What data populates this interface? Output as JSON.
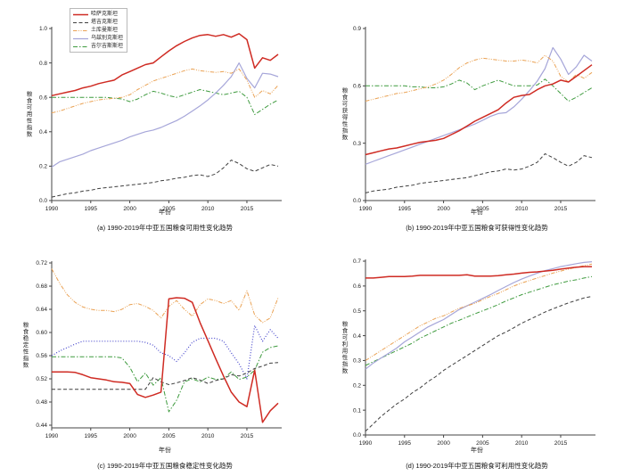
{
  "figure": {
    "background": "#ffffff",
    "axis_color": "#444444",
    "text_color": "#1a1a1a"
  },
  "x_axis": {
    "label": "年份",
    "tick_labels": [
      "1990",
      "1995",
      "2000",
      "2005",
      "2010",
      "2015"
    ]
  },
  "years": [
    1990,
    1991,
    1992,
    1993,
    1994,
    1995,
    1996,
    1997,
    1998,
    1999,
    2000,
    2001,
    2002,
    2003,
    2004,
    2005,
    2006,
    2007,
    2008,
    2009,
    2010,
    2011,
    2012,
    2013,
    2014,
    2015,
    2016,
    2017,
    2018,
    2019
  ],
  "countries": [
    {
      "key": "kazakhstan",
      "label": "哈萨克斯坦",
      "color": "#cf2b23",
      "style": "solid",
      "width": 1.5
    },
    {
      "key": "tajikistan",
      "label": "塔吉克斯坦",
      "color": "#3f3f3f",
      "style": "dashed",
      "width": 1
    },
    {
      "key": "turkmenistan",
      "label": "土库曼斯坦",
      "color": "#eaa254",
      "style": "dashdotdot",
      "width": 1
    },
    {
      "key": "uzbekistan",
      "label": "乌兹别克斯坦",
      "color": "#a6a6d9",
      "style": "solid",
      "width": 1.2
    },
    {
      "key": "kyrgyzstan",
      "label": "吉尔吉斯斯坦",
      "color": "#3f9b3f",
      "style": "dashdot",
      "width": 1
    }
  ],
  "legend": {
    "location": "upper-left",
    "items": [
      "哈萨克斯坦",
      "塔吉克斯坦",
      "土库曼斯坦",
      "乌兹别克斯坦",
      "吉尔吉斯斯坦"
    ]
  },
  "chart_data": [
    {
      "id": "a",
      "type": "line",
      "caption": "(a) 1990-2019年中亚五国粮食可用性变化趋势",
      "ylabel": "粮食可用性指数",
      "xlabel": "年份",
      "ylim": [
        0.0,
        1.0
      ],
      "ytick_labels": [
        "0.0",
        "0.2",
        "0.4",
        "0.6",
        "0.8",
        "1.0"
      ],
      "series": {
        "kazakhstan": [
          0.61,
          0.62,
          0.63,
          0.64,
          0.655,
          0.665,
          0.68,
          0.69,
          0.7,
          0.73,
          0.75,
          0.77,
          0.79,
          0.8,
          0.835,
          0.87,
          0.9,
          0.925,
          0.945,
          0.96,
          0.965,
          0.955,
          0.965,
          0.95,
          0.97,
          0.935,
          0.77,
          0.83,
          0.815,
          0.85
        ],
        "tajikistan": [
          0.02,
          0.03,
          0.04,
          0.045,
          0.055,
          0.06,
          0.07,
          0.075,
          0.08,
          0.085,
          0.09,
          0.095,
          0.1,
          0.105,
          0.115,
          0.12,
          0.13,
          0.135,
          0.145,
          0.15,
          0.14,
          0.155,
          0.19,
          0.235,
          0.215,
          0.185,
          0.17,
          0.19,
          0.21,
          0.2
        ],
        "turkmenistan": [
          0.51,
          0.52,
          0.535,
          0.55,
          0.565,
          0.575,
          0.585,
          0.59,
          0.595,
          0.6,
          0.615,
          0.645,
          0.67,
          0.695,
          0.71,
          0.725,
          0.74,
          0.755,
          0.765,
          0.755,
          0.75,
          0.745,
          0.75,
          0.74,
          0.765,
          0.7,
          0.6,
          0.64,
          0.62,
          0.67
        ],
        "uzbekistan": [
          0.195,
          0.225,
          0.24,
          0.255,
          0.27,
          0.29,
          0.305,
          0.32,
          0.335,
          0.35,
          0.37,
          0.385,
          0.4,
          0.41,
          0.425,
          0.445,
          0.465,
          0.49,
          0.52,
          0.55,
          0.585,
          0.625,
          0.67,
          0.72,
          0.8,
          0.71,
          0.655,
          0.74,
          0.735,
          0.72
        ],
        "kyrgyzstan": [
          0.6,
          0.6,
          0.6,
          0.6,
          0.6,
          0.6,
          0.6,
          0.6,
          0.595,
          0.59,
          0.575,
          0.59,
          0.615,
          0.635,
          0.625,
          0.61,
          0.6,
          0.615,
          0.63,
          0.645,
          0.635,
          0.625,
          0.615,
          0.625,
          0.635,
          0.6,
          0.5,
          0.53,
          0.56,
          0.585
        ]
      },
      "style_overrides": {}
    },
    {
      "id": "b",
      "type": "line",
      "caption": "(b) 1990-2019年中亚五国粮食可获得性变化趋势",
      "ylabel": "粮食可获得性指数",
      "xlabel": "年份",
      "ylim": [
        0.0,
        0.9
      ],
      "ytick_labels": [
        "0.0",
        "0.3",
        "0.6",
        "0.9"
      ],
      "series": {
        "kazakhstan": [
          0.24,
          0.25,
          0.26,
          0.27,
          0.275,
          0.285,
          0.295,
          0.305,
          0.31,
          0.315,
          0.325,
          0.345,
          0.365,
          0.39,
          0.415,
          0.435,
          0.455,
          0.475,
          0.51,
          0.54,
          0.55,
          0.555,
          0.58,
          0.6,
          0.61,
          0.63,
          0.62,
          0.65,
          0.68,
          0.71
        ],
        "tajikistan": [
          0.04,
          0.05,
          0.055,
          0.06,
          0.07,
          0.075,
          0.08,
          0.09,
          0.095,
          0.1,
          0.105,
          0.11,
          0.115,
          0.12,
          0.13,
          0.14,
          0.15,
          0.155,
          0.165,
          0.16,
          0.165,
          0.18,
          0.2,
          0.245,
          0.225,
          0.2,
          0.18,
          0.2,
          0.235,
          0.225
        ],
        "turkmenistan": [
          0.52,
          0.53,
          0.54,
          0.55,
          0.56,
          0.565,
          0.575,
          0.585,
          0.595,
          0.61,
          0.63,
          0.66,
          0.695,
          0.72,
          0.735,
          0.745,
          0.74,
          0.735,
          0.73,
          0.73,
          0.735,
          0.73,
          0.72,
          0.76,
          0.73,
          0.65,
          0.62,
          0.66,
          0.64,
          0.67
        ],
        "uzbekistan": [
          0.19,
          0.205,
          0.22,
          0.235,
          0.25,
          0.265,
          0.28,
          0.295,
          0.31,
          0.325,
          0.34,
          0.355,
          0.37,
          0.385,
          0.4,
          0.42,
          0.44,
          0.455,
          0.46,
          0.49,
          0.53,
          0.575,
          0.625,
          0.69,
          0.8,
          0.74,
          0.66,
          0.7,
          0.76,
          0.73
        ],
        "kyrgyzstan": [
          0.6,
          0.6,
          0.6,
          0.6,
          0.6,
          0.6,
          0.595,
          0.595,
          0.59,
          0.59,
          0.595,
          0.61,
          0.63,
          0.615,
          0.58,
          0.6,
          0.615,
          0.63,
          0.615,
          0.6,
          0.6,
          0.6,
          0.605,
          0.635,
          0.6,
          0.56,
          0.52,
          0.54,
          0.565,
          0.59
        ]
      },
      "style_overrides": {}
    },
    {
      "id": "c",
      "type": "line",
      "caption": "(c) 1990-2019年中亚五国粮食稳定性变化趋势",
      "ylabel": "粮食稳定性指数",
      "xlabel": "年份",
      "ylim": [
        0.44,
        0.72
      ],
      "ytick_labels": [
        "0.44",
        "0.48",
        "0.52",
        "0.56",
        "0.60",
        "0.64",
        "0.68",
        "0.72"
      ],
      "series": {
        "kazakhstan": [
          0.532,
          0.532,
          0.532,
          0.531,
          0.527,
          0.522,
          0.52,
          0.518,
          0.515,
          0.514,
          0.512,
          0.493,
          0.488,
          0.492,
          0.497,
          0.658,
          0.66,
          0.659,
          0.652,
          0.617,
          0.586,
          0.555,
          0.525,
          0.497,
          0.48,
          0.472,
          0.535,
          0.445,
          0.465,
          0.478
        ],
        "tajikistan": [
          0.502,
          0.502,
          0.502,
          0.502,
          0.502,
          0.502,
          0.502,
          0.502,
          0.502,
          0.502,
          0.502,
          0.502,
          0.502,
          0.522,
          0.515,
          0.51,
          0.513,
          0.517,
          0.522,
          0.518,
          0.512,
          0.517,
          0.52,
          0.527,
          0.525,
          0.53,
          0.538,
          0.542,
          0.547,
          0.548
        ],
        "turkmenistan": [
          0.71,
          0.685,
          0.665,
          0.652,
          0.644,
          0.64,
          0.638,
          0.638,
          0.636,
          0.64,
          0.648,
          0.65,
          0.645,
          0.638,
          0.625,
          0.645,
          0.655,
          0.64,
          0.628,
          0.648,
          0.658,
          0.655,
          0.65,
          0.655,
          0.638,
          0.672,
          0.63,
          0.617,
          0.625,
          0.66
        ],
        "uzbekistan": [
          0.56,
          0.568,
          0.574,
          0.58,
          0.585,
          0.585,
          0.585,
          0.585,
          0.585,
          0.585,
          0.585,
          0.585,
          0.583,
          0.578,
          0.565,
          0.56,
          0.55,
          0.565,
          0.583,
          0.59,
          0.59,
          0.59,
          0.585,
          0.565,
          0.546,
          0.52,
          0.612,
          0.585,
          0.605,
          0.59
        ],
        "kyrgyzstan": [
          0.558,
          0.558,
          0.558,
          0.558,
          0.558,
          0.558,
          0.558,
          0.558,
          0.558,
          0.556,
          0.54,
          0.515,
          0.53,
          0.509,
          0.522,
          0.463,
          0.483,
          0.515,
          0.52,
          0.515,
          0.523,
          0.519,
          0.52,
          0.532,
          0.519,
          0.523,
          0.535,
          0.566,
          0.574,
          0.577
        ]
      },
      "style_overrides": {
        "uzbekistan": {
          "color": "#4646cc",
          "style": "dotted"
        }
      }
    },
    {
      "id": "d",
      "type": "line",
      "caption": "(d) 1990-2019年中亚五国粮食可利用性变化趋势",
      "ylabel": "粮食可利用性指数",
      "xlabel": "年份",
      "ylim": [
        0.0,
        0.7
      ],
      "ytick_labels": [
        "0.0",
        "0.1",
        "0.2",
        "0.3",
        "0.4",
        "0.5",
        "0.6",
        "0.7"
      ],
      "series": {
        "kazakhstan": [
          0.632,
          0.632,
          0.635,
          0.638,
          0.638,
          0.638,
          0.64,
          0.643,
          0.643,
          0.643,
          0.643,
          0.643,
          0.643,
          0.645,
          0.64,
          0.64,
          0.64,
          0.642,
          0.645,
          0.648,
          0.652,
          0.655,
          0.657,
          0.66,
          0.663,
          0.668,
          0.672,
          0.676,
          0.678,
          0.678
        ],
        "tajikistan": [
          0.015,
          0.045,
          0.075,
          0.1,
          0.125,
          0.145,
          0.17,
          0.19,
          0.215,
          0.235,
          0.26,
          0.28,
          0.3,
          0.32,
          0.34,
          0.36,
          0.38,
          0.4,
          0.415,
          0.432,
          0.45,
          0.465,
          0.48,
          0.495,
          0.508,
          0.52,
          0.532,
          0.542,
          0.552,
          0.558
        ],
        "turkmenistan": [
          0.3,
          0.32,
          0.34,
          0.36,
          0.38,
          0.4,
          0.42,
          0.44,
          0.455,
          0.47,
          0.48,
          0.495,
          0.51,
          0.52,
          0.53,
          0.545,
          0.558,
          0.57,
          0.585,
          0.6,
          0.612,
          0.622,
          0.632,
          0.642,
          0.652,
          0.66,
          0.668,
          0.675,
          0.682,
          0.688
        ],
        "uzbekistan": [
          0.265,
          0.29,
          0.31,
          0.33,
          0.35,
          0.375,
          0.395,
          0.415,
          0.435,
          0.45,
          0.465,
          0.485,
          0.505,
          0.52,
          0.535,
          0.55,
          0.565,
          0.582,
          0.598,
          0.614,
          0.628,
          0.64,
          0.652,
          0.662,
          0.67,
          0.678,
          0.684,
          0.69,
          0.695,
          0.698
        ],
        "kyrgyzstan": [
          0.28,
          0.295,
          0.31,
          0.325,
          0.34,
          0.355,
          0.37,
          0.39,
          0.405,
          0.42,
          0.435,
          0.45,
          0.462,
          0.475,
          0.488,
          0.5,
          0.512,
          0.525,
          0.54,
          0.552,
          0.565,
          0.575,
          0.585,
          0.595,
          0.605,
          0.612,
          0.62,
          0.625,
          0.632,
          0.638
        ]
      },
      "style_overrides": {}
    }
  ]
}
